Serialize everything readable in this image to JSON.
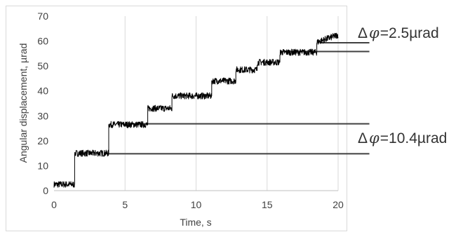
{
  "chart_data": {
    "type": "line",
    "title": "",
    "xlabel": "Time, s",
    "ylabel": "Angular displacement, µrad",
    "xlim": [
      0,
      20
    ],
    "ylim": [
      0,
      70
    ],
    "x_ticks": [
      0,
      5,
      10,
      15,
      20
    ],
    "y_ticks": [
      0,
      10,
      20,
      30,
      40,
      50,
      60,
      70
    ],
    "grid": "vertical",
    "legend": "none",
    "series": [
      {
        "color": "#000000",
        "steps": [
          {
            "x_start": 0.0,
            "x_end": 1.45,
            "y": 2.5
          },
          {
            "x_start": 1.45,
            "x_end": 3.85,
            "y": 15.0
          },
          {
            "x_start": 3.85,
            "x_end": 6.6,
            "y": 26.5
          },
          {
            "x_start": 6.6,
            "x_end": 8.3,
            "y": 33.0
          },
          {
            "x_start": 8.3,
            "x_end": 11.1,
            "y": 38.0
          },
          {
            "x_start": 11.1,
            "x_end": 12.8,
            "y": 44.0
          },
          {
            "x_start": 12.8,
            "x_end": 14.3,
            "y": 48.5
          },
          {
            "x_start": 14.3,
            "x_end": 15.9,
            "y": 51.5
          },
          {
            "x_start": 15.9,
            "x_end": 18.5,
            "y": 55.5
          },
          {
            "x_start": 18.5,
            "x_end": 20.0,
            "y": 59.5
          }
        ],
        "end_value": 62.5
      }
    ],
    "reference_lines": [
      {
        "y": 59.3,
        "x_from": 18.8,
        "x_to": 22.2
      },
      {
        "y": 55.8,
        "x_from": 15.9,
        "x_to": 22.2
      },
      {
        "y": 26.8,
        "x_from": 5.0,
        "x_to": 22.2
      },
      {
        "y": 14.8,
        "x_from": 3.7,
        "x_to": 22.2
      }
    ],
    "annotations": [
      {
        "symbol": "Δ",
        "variable": "φ",
        "value": "=2.5µrad"
      },
      {
        "symbol": "Δ",
        "variable": "φ",
        "value": "=10.4µrad"
      }
    ]
  }
}
